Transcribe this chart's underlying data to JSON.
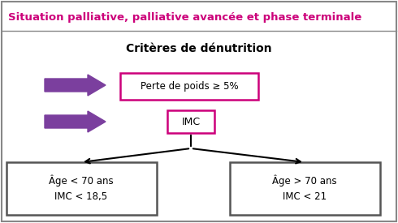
{
  "title": "Situation palliative, palliative avancée et phase terminale",
  "title_color": "#CC007A",
  "subtitle": "Critères de dénutrition",
  "subtitle_color": "#000000",
  "arrow_color": "#7B3F9E",
  "box_border_color_pink": "#CC007A",
  "box_border_color_dark": "#555555",
  "box1_text": "Perte de poids ≥ 5%",
  "box2_text": "IMC",
  "box3_text": "Âge < 70 ans\nIMC < 18,5",
  "box4_text": "Âge > 70 ans\nIMC < 21",
  "bg_color": "#FFFFFF",
  "border_color": "#888888",
  "figsize": [
    4.9,
    2.75
  ],
  "dpi": 100
}
